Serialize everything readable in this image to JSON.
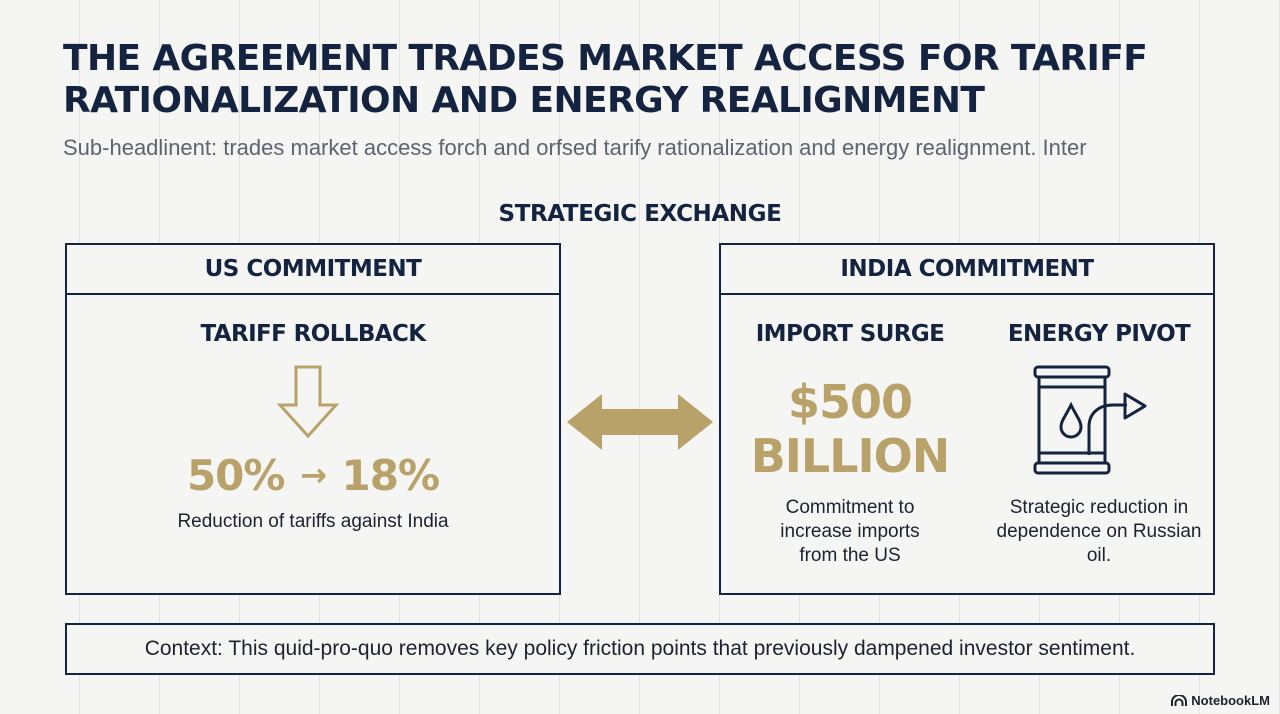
{
  "header": {
    "title": "THE AGREEMENT TRADES MARKET ACCESS FOR TARIFF RATIONALIZATION AND ENERGY REALIGNMENT",
    "subheadline": "Sub-headlinent: trades market access forch and orfsed tarify rationalization and energy realignment. Inter"
  },
  "section_title": "STRATEGIC EXCHANGE",
  "us_panel": {
    "heading": "US COMMITMENT",
    "item_title": "TARIFF ROLLBACK",
    "rate_from": "50%",
    "arrow": "→",
    "rate_to": "18%",
    "description": "Reduction of tariffs against India"
  },
  "india_panel": {
    "heading": "INDIA COMMITMENT",
    "import": {
      "title": "IMPORT SURGE",
      "amount": "$500",
      "unit": "BILLION",
      "description": "Commitment to increase imports from the US"
    },
    "energy": {
      "title": "ENERGY PIVOT",
      "description": "Strategic reduction in dependence on Russian oil."
    }
  },
  "context": "Context: This quid-pro-quo removes key policy friction points that previously dampened investor sentiment.",
  "brand": "NotebookLM",
  "colors": {
    "navy": "#14233f",
    "gold": "#b9a26a",
    "background": "#f5f5f3"
  }
}
